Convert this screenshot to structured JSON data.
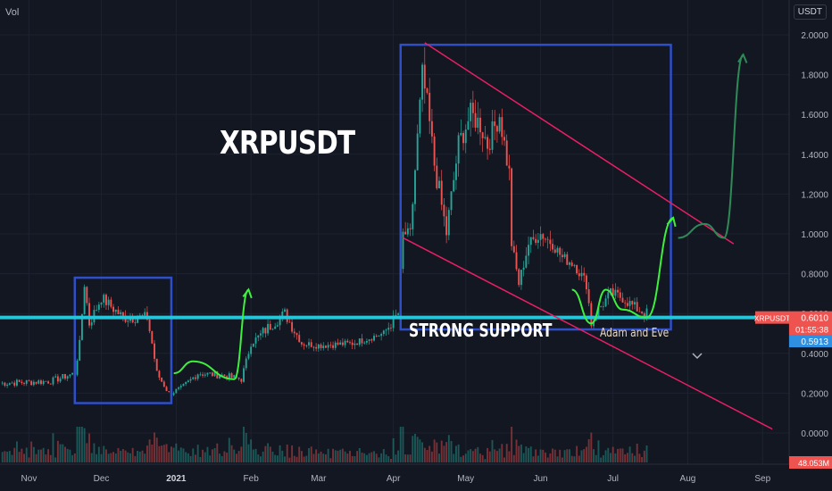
{
  "header": {
    "volume_label": "Vol",
    "currency": "USDT"
  },
  "annotations": {
    "title": "XRPUSDT",
    "support_label": "STRONG SUPPORT",
    "pattern_label": "Adam and Eve"
  },
  "colors": {
    "background": "#131722",
    "grid": "#1e2230",
    "support_line": "#26c6da",
    "box": "#2f4fc8",
    "channel": "#e91e63",
    "arrow_bright": "#3ef03e",
    "arrow_dark": "#2e8b57",
    "candle_up": "#26a69a",
    "candle_down": "#ef5350",
    "price_tag": "#ef5350",
    "mark_tag": "#2f8fe0"
  },
  "chart_data": {
    "type": "candlestick",
    "symbol": "XRPUSDT",
    "y_axis": {
      "ticks": [
        "2.0000",
        "1.8000",
        "1.6000",
        "1.4000",
        "1.2000",
        "1.0000",
        "0.8000",
        "0.6000",
        "0.4000",
        "0.2000",
        "0.0000"
      ],
      "ylim": [
        0,
        2.0
      ]
    },
    "x_axis": {
      "ticks": [
        "Nov",
        "Dec",
        "2021",
        "Feb",
        "Mar",
        "Apr",
        "May",
        "Jun",
        "Jul",
        "Aug",
        "Sep"
      ],
      "range": [
        "2020-10-20",
        "2021-09-12"
      ]
    },
    "price_anchors": [
      [
        "2020-10-20",
        0.25
      ],
      [
        "2020-11-10",
        0.26
      ],
      [
        "2020-11-20",
        0.3
      ],
      [
        "2020-11-22",
        0.45
      ],
      [
        "2020-11-24",
        0.75
      ],
      [
        "2020-11-26",
        0.55
      ],
      [
        "2020-12-01",
        0.68
      ],
      [
        "2020-12-10",
        0.58
      ],
      [
        "2020-12-20",
        0.58
      ],
      [
        "2020-12-22",
        0.45
      ],
      [
        "2020-12-24",
        0.3
      ],
      [
        "2020-12-29",
        0.2
      ],
      [
        "2021-01-03",
        0.22
      ],
      [
        "2021-01-10",
        0.3
      ],
      [
        "2021-01-20",
        0.29
      ],
      [
        "2021-01-28",
        0.27
      ],
      [
        "2021-02-01",
        0.45
      ],
      [
        "2021-02-10",
        0.55
      ],
      [
        "2021-02-15",
        0.6
      ],
      [
        "2021-02-22",
        0.45
      ],
      [
        "2021-03-01",
        0.44
      ],
      [
        "2021-03-15",
        0.45
      ],
      [
        "2021-03-28",
        0.5
      ],
      [
        "2021-04-03",
        0.6
      ],
      [
        "2021-04-05",
        1.0
      ],
      [
        "2021-04-08",
        1.0
      ],
      [
        "2021-04-13",
        1.8
      ],
      [
        "2021-04-15",
        1.65
      ],
      [
        "2021-04-18",
        1.35
      ],
      [
        "2021-04-23",
        1.0
      ],
      [
        "2021-04-28",
        1.45
      ],
      [
        "2021-05-03",
        1.6
      ],
      [
        "2021-05-07",
        1.55
      ],
      [
        "2021-05-10",
        1.45
      ],
      [
        "2021-05-15",
        1.6
      ],
      [
        "2021-05-19",
        1.3
      ],
      [
        "2021-05-20",
        0.95
      ],
      [
        "2021-05-23",
        0.75
      ],
      [
        "2021-05-27",
        0.95
      ],
      [
        "2021-06-01",
        1.0
      ],
      [
        "2021-06-06",
        0.95
      ],
      [
        "2021-06-10",
        0.88
      ],
      [
        "2021-06-15",
        0.85
      ],
      [
        "2021-06-20",
        0.75
      ],
      [
        "2021-06-22",
        0.55
      ],
      [
        "2021-06-25",
        0.62
      ],
      [
        "2021-06-30",
        0.7
      ],
      [
        "2021-07-05",
        0.68
      ],
      [
        "2021-07-10",
        0.63
      ],
      [
        "2021-07-15",
        0.6
      ]
    ],
    "support_level": 0.58,
    "support_box": [
      "2021-04-04",
      "2021-07-25",
      0.52,
      1.95
    ],
    "left_box": [
      "2020-11-20",
      "2020-12-30",
      0.15,
      0.78
    ],
    "channel_upper": [
      [
        "2021-04-14",
        1.96
      ],
      [
        "2021-08-20",
        0.95
      ]
    ],
    "channel_lower": [
      [
        "2021-04-05",
        0.98
      ],
      [
        "2021-09-05",
        0.02
      ]
    ],
    "projection_green_1": [
      [
        "2020-12-31",
        0.3
      ],
      [
        "2021-01-08",
        0.36
      ],
      [
        "2021-01-25",
        0.27
      ],
      [
        "2021-01-31",
        0.72
      ]
    ],
    "projection_green_2": [
      [
        "2021-06-14",
        0.72
      ],
      [
        "2021-06-22",
        0.55
      ],
      [
        "2021-06-28",
        0.72
      ],
      [
        "2021-07-05",
        0.62
      ],
      [
        "2021-07-15",
        0.58
      ],
      [
        "2021-07-26",
        1.08
      ]
    ],
    "projection_dark": [
      [
        "2021-07-28",
        0.98
      ],
      [
        "2021-08-08",
        1.05
      ],
      [
        "2021-08-16",
        0.98
      ],
      [
        "2021-08-24",
        1.9
      ]
    ],
    "last_price": {
      "symbol": "XRPUSDT",
      "price": "0.6010",
      "countdown": "01:55:38",
      "mark": "0.5913"
    },
    "volume": {
      "zero_label": "0.0000",
      "last_label": "48.053M"
    }
  }
}
